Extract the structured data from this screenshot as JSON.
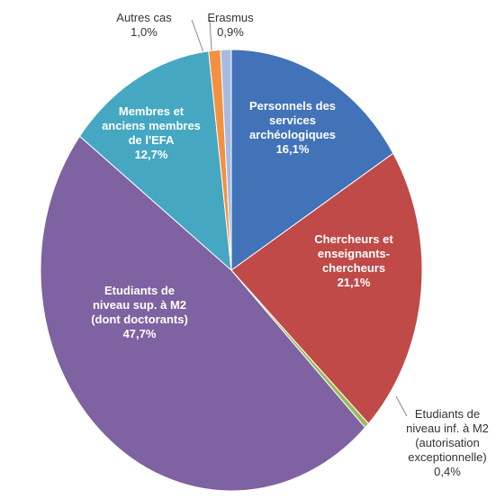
{
  "chart_data": {
    "type": "pie",
    "categories": [
      "Personnels des services archéologiques",
      "Chercheurs et enseignants-chercheurs",
      "Etudiants de niveau inf. à M2 (autorisation exceptionnelle)",
      "Etudiants de niveau sup. à M2 (dont doctorants)",
      "Membres et anciens membres de l'EFA",
      "Autres cas",
      "Erasmus"
    ],
    "values": [
      16.1,
      21.1,
      0.4,
      47.7,
      12.7,
      1.0,
      0.9
    ],
    "value_labels": [
      "16,1%",
      "21,1%",
      "0,4%",
      "47,7%",
      "12,7%",
      "1,0%",
      "0,9%"
    ],
    "colors": [
      "#4272b8",
      "#bf4a47",
      "#9bbb59",
      "#7f62a1",
      "#45a7c2",
      "#f39140",
      "#a7bbe2"
    ]
  }
}
